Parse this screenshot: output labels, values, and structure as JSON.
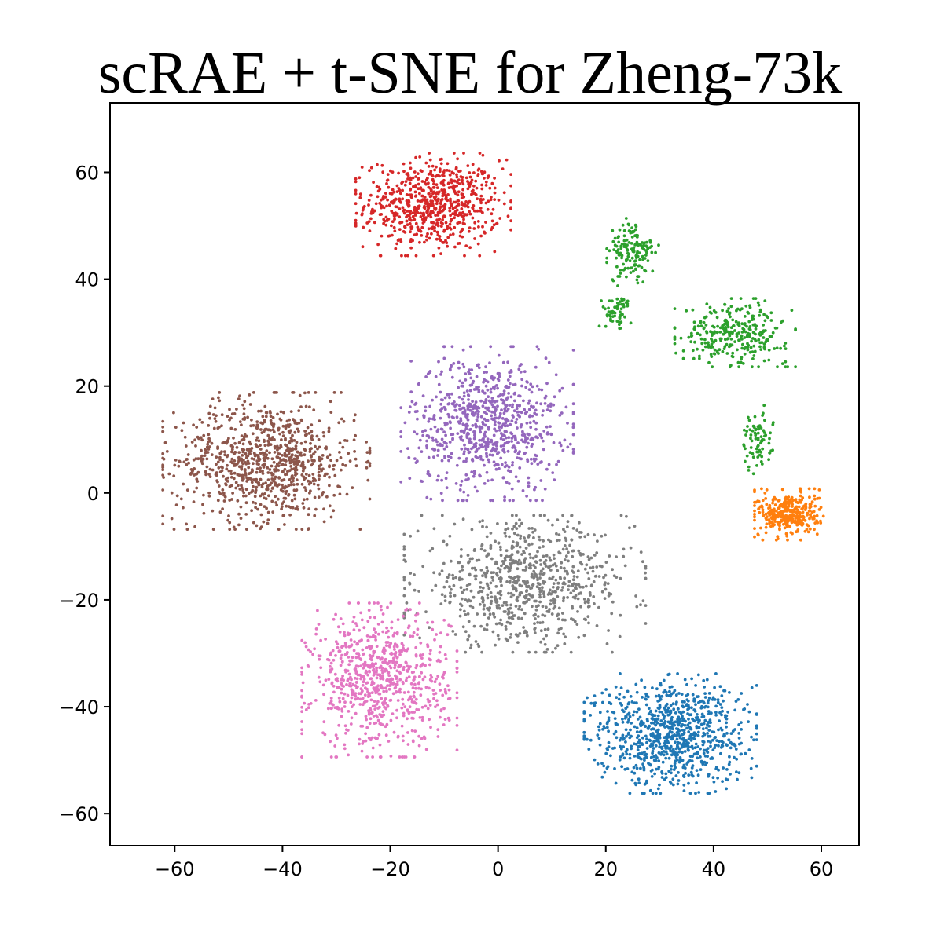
{
  "title": "scRAE + t-SNE for Zheng-73k",
  "chart_data": {
    "type": "scatter",
    "title": "scRAE + t-SNE for Zheng-73k",
    "xlabel": "",
    "ylabel": "",
    "xlim": [
      -72,
      67
    ],
    "ylim": [
      -66,
      73
    ],
    "xticks": [
      -60,
      -40,
      -20,
      0,
      20,
      40,
      60
    ],
    "yticks": [
      -60,
      -40,
      -20,
      0,
      20,
      40,
      60
    ],
    "xtick_labels": [
      "−60",
      "−40",
      "−20",
      "0",
      "20",
      "40",
      "60"
    ],
    "ytick_labels": [
      "−60",
      "−40",
      "−20",
      "0",
      "20",
      "40",
      "60"
    ],
    "grid": false,
    "legend": "none",
    "clusters": [
      {
        "color": "#d62728",
        "center": [
          -12,
          54
        ],
        "spread": [
          9,
          6
        ],
        "count": 700
      },
      {
        "color": "#8c564b",
        "center": [
          -43,
          6
        ],
        "spread": [
          12,
          8
        ],
        "count": 900
      },
      {
        "color": "#9467bd",
        "center": [
          -2,
          13
        ],
        "spread": [
          10,
          9
        ],
        "count": 800
      },
      {
        "color": "#7f7f7f",
        "center": [
          5,
          -17
        ],
        "spread": [
          14,
          8
        ],
        "count": 800
      },
      {
        "color": "#e377c2",
        "center": [
          -22,
          -35
        ],
        "spread": [
          9,
          9
        ],
        "count": 800
      },
      {
        "color": "#2ca02c",
        "center": [
          25,
          45
        ],
        "spread": [
          3,
          4
        ],
        "count": 150
      },
      {
        "color": "#2ca02c",
        "center": [
          22,
          34
        ],
        "spread": [
          2,
          2
        ],
        "count": 60
      },
      {
        "color": "#2ca02c",
        "center": [
          44,
          30
        ],
        "spread": [
          7,
          4
        ],
        "count": 300
      },
      {
        "color": "#2ca02c",
        "center": [
          48,
          10
        ],
        "spread": [
          2,
          4
        ],
        "count": 80
      },
      {
        "color": "#ff7f0e",
        "center": [
          54,
          -4
        ],
        "spread": [
          4,
          3
        ],
        "count": 350
      },
      {
        "color": "#1f77b4",
        "center": [
          32,
          -45
        ],
        "spread": [
          10,
          7
        ],
        "count": 900
      }
    ]
  }
}
